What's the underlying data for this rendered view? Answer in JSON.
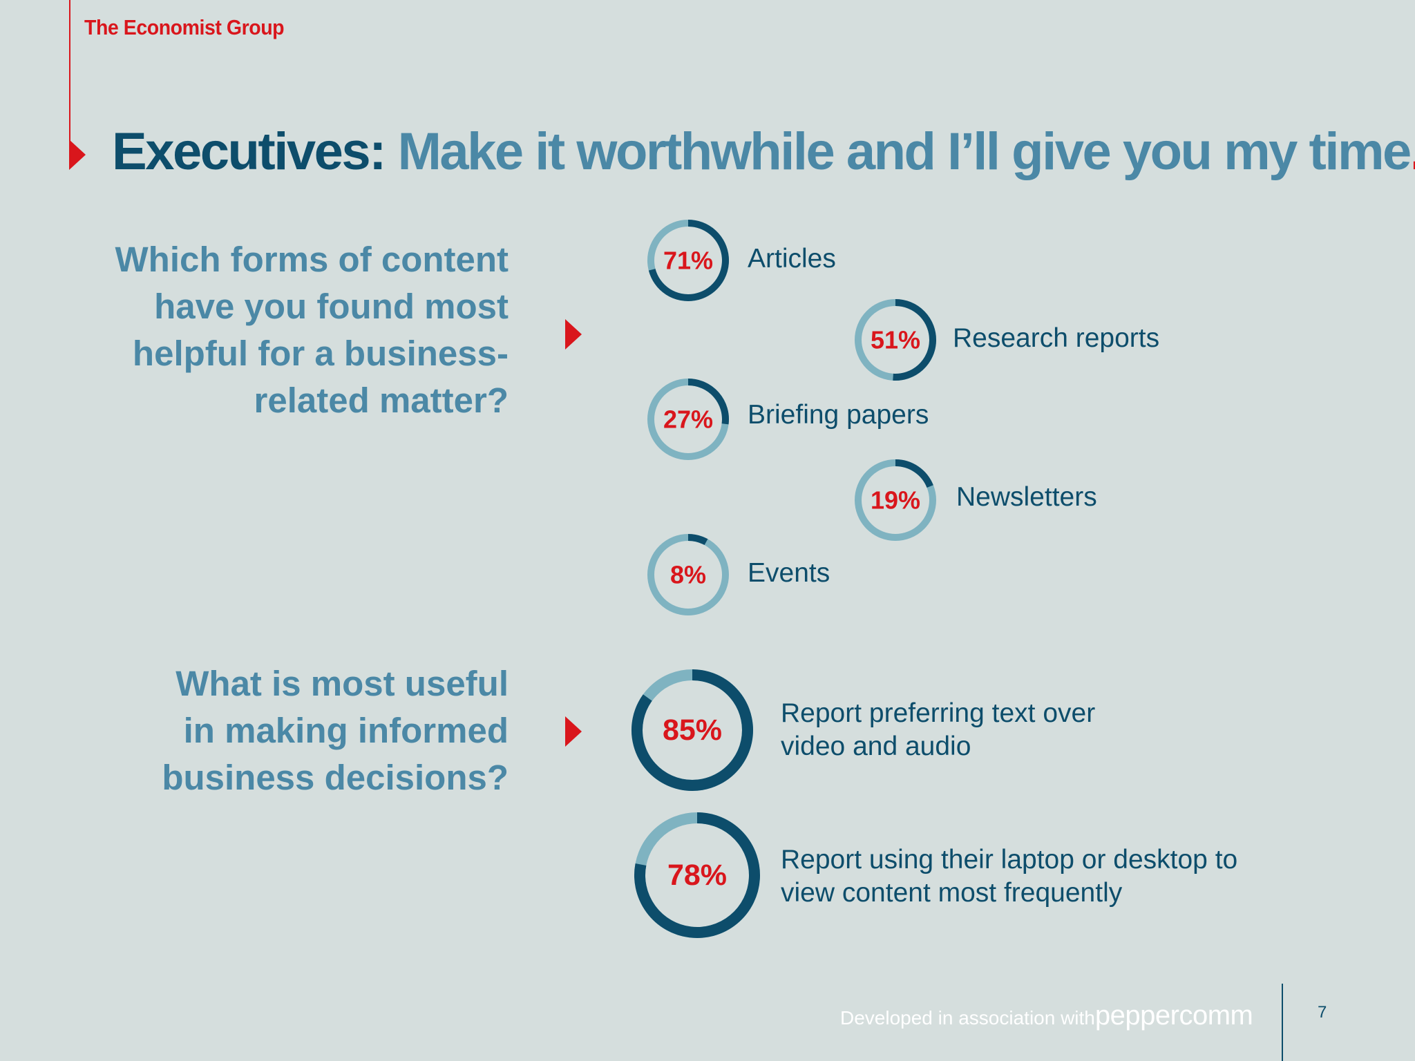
{
  "brand": "The Economist Group",
  "title": {
    "lead": "Executives:",
    "rest": "Make it worthwhile and I’ll give you my time",
    "period": "."
  },
  "questions": [
    "Which forms of content have you found most helpful for a business-related matter?",
    "What is most useful in making informed business decisions?"
  ],
  "colors": {
    "dark": "#0d4d6b",
    "light": "#7fb3c1",
    "accent": "#d9161c",
    "mid": "#4b88a6",
    "background": "#d5dedd"
  },
  "chart_data": [
    {
      "type": "pie",
      "title": "Which forms of content have you found most helpful for a business-related matter?",
      "categories": [
        "Articles",
        "Research reports",
        "Briefing papers",
        "Newsletters",
        "Events"
      ],
      "values": [
        71,
        51,
        27,
        19,
        8
      ],
      "unit": "%"
    },
    {
      "type": "pie",
      "title": "What is most useful in making informed business decisions?",
      "categories": [
        "Report preferring text over video and audio",
        "Report using their laptop or desktop to view content most frequently"
      ],
      "values": [
        85,
        78
      ],
      "unit": "%"
    }
  ],
  "footer": {
    "text": "Developed in association with",
    "logo": "peppercomm",
    "page": "7"
  }
}
